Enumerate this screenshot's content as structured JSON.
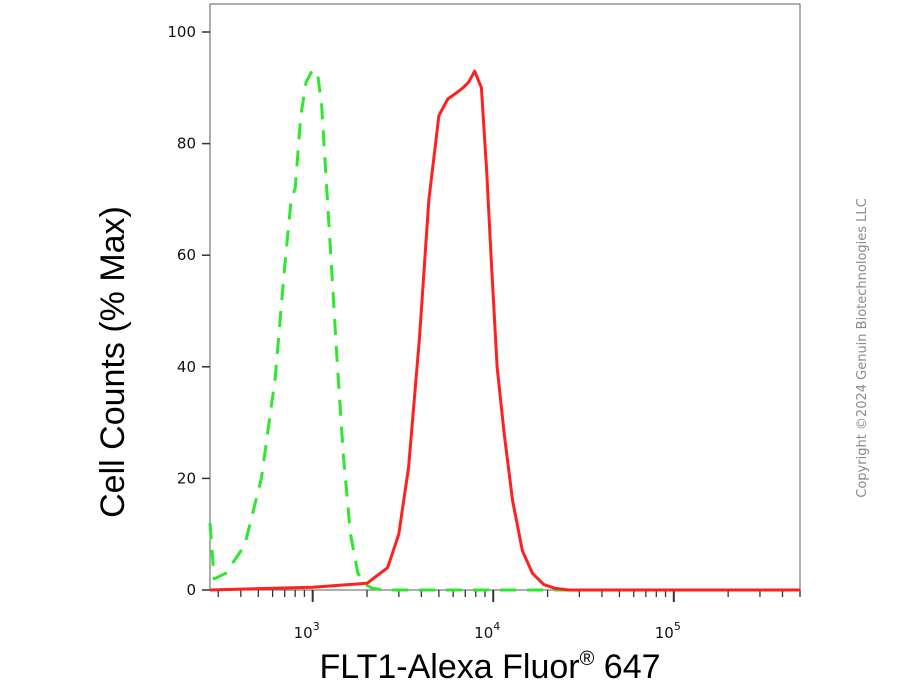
{
  "chart_data": {
    "type": "line",
    "xlabel": "FLT1-Alexa Fluor",
    "xlabel_sup": "®",
    "xlabel_tail": " 647",
    "ylabel": "Cell Counts (% Max)",
    "x_scale": "log",
    "xlim": [
      270,
      500000
    ],
    "ylim": [
      0,
      100
    ],
    "y_ticks": [
      0,
      20,
      40,
      60,
      80,
      100
    ],
    "y_tick_labels": [
      "0",
      "20",
      "40",
      "60",
      "80",
      "100"
    ],
    "x_major_ticks": [
      1000,
      10000,
      100000
    ],
    "x_tick_labels": [
      {
        "base": "10",
        "exp": "3"
      },
      {
        "base": "10",
        "exp": "4"
      },
      {
        "base": "10",
        "exp": "5"
      }
    ],
    "grid": false,
    "legend": "none",
    "series": [
      {
        "color": "#2ee82e",
        "style": "dashed",
        "x": [
          270,
          285,
          330,
          420,
          520,
          620,
          700,
          760,
          800,
          860,
          920,
          990,
          1060,
          1120,
          1180,
          1260,
          1360,
          1480,
          1620,
          1780,
          1950,
          2150,
          2500,
          3200,
          5000,
          10000,
          30000,
          100000,
          500000
        ],
        "y": [
          12,
          2,
          3,
          8,
          20,
          38,
          58,
          70,
          72,
          85,
          91,
          93,
          93,
          87,
          75,
          60,
          42,
          24,
          10,
          3,
          1,
          0.3,
          0,
          0,
          0,
          0,
          0,
          0,
          0
        ]
      },
      {
        "color": "#ff2020",
        "style": "solid",
        "x": [
          270,
          1000,
          2000,
          2600,
          3000,
          3400,
          3900,
          4400,
          5000,
          5600,
          6200,
          6800,
          7300,
          7900,
          8600,
          9200,
          9800,
          10500,
          11500,
          12800,
          14500,
          16500,
          19000,
          22000,
          26000,
          35000,
          100000,
          500000
        ],
        "y": [
          0,
          0.5,
          1.2,
          4,
          10,
          22,
          45,
          70,
          85,
          88,
          89,
          90,
          91,
          93,
          90,
          75,
          58,
          40,
          28,
          16,
          7,
          3,
          1,
          0.3,
          0,
          0,
          0,
          0
        ]
      }
    ]
  },
  "copyright": "Copyright ©2024 Genuin Biotechnologies LLC"
}
